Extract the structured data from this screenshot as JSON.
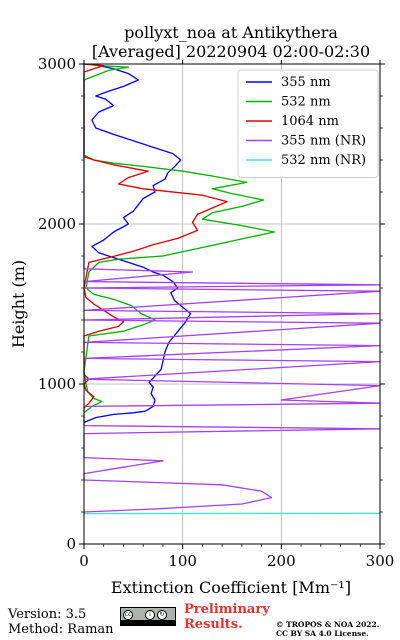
{
  "chart_data": {
    "type": "line",
    "title": "pollyxt_noa at Antikythera",
    "subtitle": "[Averaged] 20220904 02:00-02:30",
    "xlabel": "Extinction Coefficient [Mm⁻¹]",
    "ylabel": "Height (m)",
    "xlim": [
      0,
      300
    ],
    "ylim": [
      0,
      3000
    ],
    "xticks": [
      "0",
      "100",
      "200",
      "300"
    ],
    "yticks": [
      "0",
      "1000",
      "2000",
      "3000"
    ],
    "grid": true,
    "legend_position": "top-right",
    "series": [
      {
        "name": "355 nm",
        "color": "#0000ff",
        "points": [
          [
            0,
            760
          ],
          [
            12,
            790
          ],
          [
            30,
            810
          ],
          [
            50,
            820
          ],
          [
            62,
            830
          ],
          [
            70,
            860
          ],
          [
            72,
            900
          ],
          [
            68,
            940
          ],
          [
            70,
            980
          ],
          [
            66,
            1010
          ],
          [
            72,
            1050
          ],
          [
            78,
            1090
          ],
          [
            80,
            1140
          ],
          [
            82,
            1200
          ],
          [
            86,
            1260
          ],
          [
            94,
            1320
          ],
          [
            102,
            1380
          ],
          [
            108,
            1440
          ],
          [
            100,
            1480
          ],
          [
            92,
            1520
          ],
          [
            88,
            1570
          ],
          [
            95,
            1600
          ],
          [
            90,
            1640
          ],
          [
            80,
            1680
          ],
          [
            70,
            1700
          ],
          [
            60,
            1730
          ],
          [
            45,
            1760
          ],
          [
            30,
            1790
          ],
          [
            15,
            1820
          ],
          [
            8,
            1860
          ],
          [
            20,
            1900
          ],
          [
            30,
            1950
          ],
          [
            45,
            2000
          ],
          [
            40,
            2040
          ],
          [
            50,
            2080
          ],
          [
            55,
            2120
          ],
          [
            60,
            2160
          ],
          [
            72,
            2200
          ],
          [
            70,
            2240
          ],
          [
            82,
            2280
          ],
          [
            85,
            2320
          ],
          [
            92,
            2360
          ],
          [
            98,
            2400
          ],
          [
            90,
            2440
          ],
          [
            70,
            2480
          ],
          [
            50,
            2520
          ],
          [
            30,
            2560
          ],
          [
            12,
            2600
          ],
          [
            8,
            2650
          ],
          [
            15,
            2700
          ],
          [
            30,
            2740
          ],
          [
            22,
            2780
          ],
          [
            12,
            2800
          ],
          [
            25,
            2830
          ],
          [
            40,
            2860
          ],
          [
            55,
            2900
          ],
          [
            45,
            2940
          ],
          [
            30,
            2970
          ],
          [
            15,
            2990
          ],
          [
            5,
            3000
          ]
        ]
      },
      {
        "name": "532 nm",
        "color": "#00b000",
        "points": [
          [
            0,
            820
          ],
          [
            8,
            860
          ],
          [
            18,
            890
          ],
          [
            10,
            910
          ],
          [
            4,
            950
          ],
          [
            2,
            1000
          ],
          [
            0,
            1080
          ],
          [
            5,
            1300
          ],
          [
            40,
            1330
          ],
          [
            60,
            1370
          ],
          [
            72,
            1400
          ],
          [
            58,
            1440
          ],
          [
            48,
            1490
          ],
          [
            30,
            1530
          ],
          [
            10,
            1560
          ],
          [
            2,
            1600
          ],
          [
            5,
            1700
          ],
          [
            15,
            1760
          ],
          [
            35,
            1780
          ],
          [
            80,
            1800
          ],
          [
            110,
            1840
          ],
          [
            140,
            1880
          ],
          [
            170,
            1920
          ],
          [
            193,
            1950
          ],
          [
            160,
            1990
          ],
          [
            120,
            2030
          ],
          [
            130,
            2070
          ],
          [
            160,
            2110
          ],
          [
            182,
            2150
          ],
          [
            150,
            2190
          ],
          [
            130,
            2220
          ],
          [
            165,
            2260
          ],
          [
            130,
            2300
          ],
          [
            100,
            2330
          ],
          [
            60,
            2360
          ],
          [
            30,
            2380
          ],
          [
            10,
            2400
          ],
          [
            0,
            2430
          ],
          [
            0,
            2900
          ],
          [
            25,
            2960
          ],
          [
            45,
            2980
          ],
          [
            15,
            2990
          ],
          [
            0,
            3000
          ]
        ]
      },
      {
        "name": "1064 nm",
        "color": "#dd0000",
        "points": [
          [
            0,
            850
          ],
          [
            5,
            880
          ],
          [
            10,
            920
          ],
          [
            2,
            960
          ],
          [
            0,
            1000
          ],
          [
            5,
            1030
          ],
          [
            0,
            1060
          ],
          [
            0,
            1300
          ],
          [
            15,
            1330
          ],
          [
            35,
            1360
          ],
          [
            40,
            1390
          ],
          [
            30,
            1420
          ],
          [
            20,
            1460
          ],
          [
            10,
            1500
          ],
          [
            2,
            1540
          ],
          [
            0,
            1600
          ],
          [
            5,
            1760
          ],
          [
            25,
            1790
          ],
          [
            50,
            1830
          ],
          [
            70,
            1870
          ],
          [
            95,
            1910
          ],
          [
            115,
            1960
          ],
          [
            110,
            2010
          ],
          [
            115,
            2060
          ],
          [
            130,
            2100
          ],
          [
            145,
            2140
          ],
          [
            120,
            2180
          ],
          [
            60,
            2220
          ],
          [
            35,
            2250
          ],
          [
            45,
            2290
          ],
          [
            65,
            2330
          ],
          [
            30,
            2370
          ],
          [
            10,
            2400
          ],
          [
            0,
            2420
          ],
          [
            0,
            2950
          ],
          [
            10,
            2970
          ],
          [
            20,
            2990
          ],
          [
            0,
            3000
          ]
        ]
      },
      {
        "name": "355 nm (NR)",
        "color": "#a640f0",
        "points": [
          [
            0,
            190
          ],
          [
            0,
            200
          ],
          [
            75,
            220
          ],
          [
            160,
            250
          ],
          [
            190,
            290
          ],
          [
            180,
            330
          ],
          [
            140,
            370
          ],
          [
            0,
            400
          ],
          [
            0,
            440
          ],
          [
            30,
            470
          ],
          [
            80,
            520
          ],
          [
            0,
            540
          ],
          [
            0,
            690
          ],
          [
            300,
            720
          ],
          [
            0,
            740
          ],
          [
            0,
            860
          ],
          [
            300,
            880
          ],
          [
            200,
            900
          ],
          [
            300,
            990
          ],
          [
            0,
            1030
          ],
          [
            300,
            1140
          ],
          [
            0,
            1160
          ],
          [
            300,
            1240
          ],
          [
            0,
            1260
          ],
          [
            300,
            1380
          ],
          [
            0,
            1400
          ],
          [
            300,
            1440
          ],
          [
            0,
            1460
          ],
          [
            300,
            1580
          ],
          [
            0,
            1600
          ],
          [
            300,
            1620
          ],
          [
            0,
            1640
          ],
          [
            110,
            1700
          ],
          [
            0,
            1720
          ],
          [
            0,
            3000
          ]
        ]
      },
      {
        "name": "532 nm (NR)",
        "color": "#40e8d0",
        "points": [
          [
            0,
            190
          ],
          [
            300,
            192
          ]
        ]
      }
    ]
  },
  "footer": {
    "version": "Version: 3.5",
    "method": "Method: Raman",
    "preliminary_line1": "Preliminary",
    "preliminary_line2": "Results.",
    "copyright_line1": "© TROPOS & NOA 2022.",
    "copyright_line2": "CC BY SA 4.0 License."
  },
  "license_badge": {
    "icons": [
      "cc-icon",
      "by-icon",
      "sa-icon"
    ],
    "glyphs": [
      "cc",
      "i",
      "↻"
    ]
  }
}
